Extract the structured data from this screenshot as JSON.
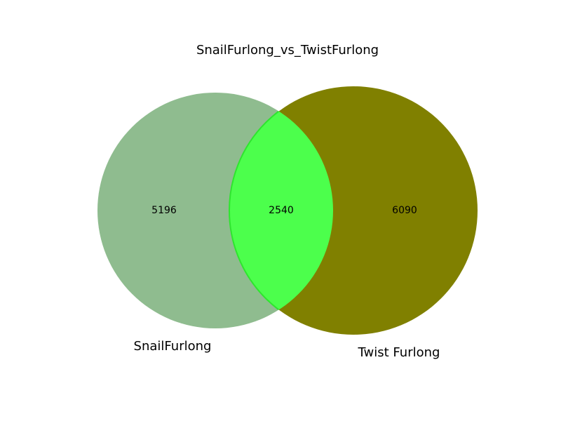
{
  "title": "SnailFurlong_vs_TwistFurlong",
  "sets": {
    "left": {
      "label": "SnailFurlong",
      "only_count": "5196",
      "color": "#8fbc8f"
    },
    "right": {
      "label": "Twist Furlong",
      "only_count": "6090",
      "color": "#808000"
    },
    "intersection": {
      "count": "2540",
      "color": "#4cff4c",
      "edge_color": "#2ee52e"
    }
  }
}
